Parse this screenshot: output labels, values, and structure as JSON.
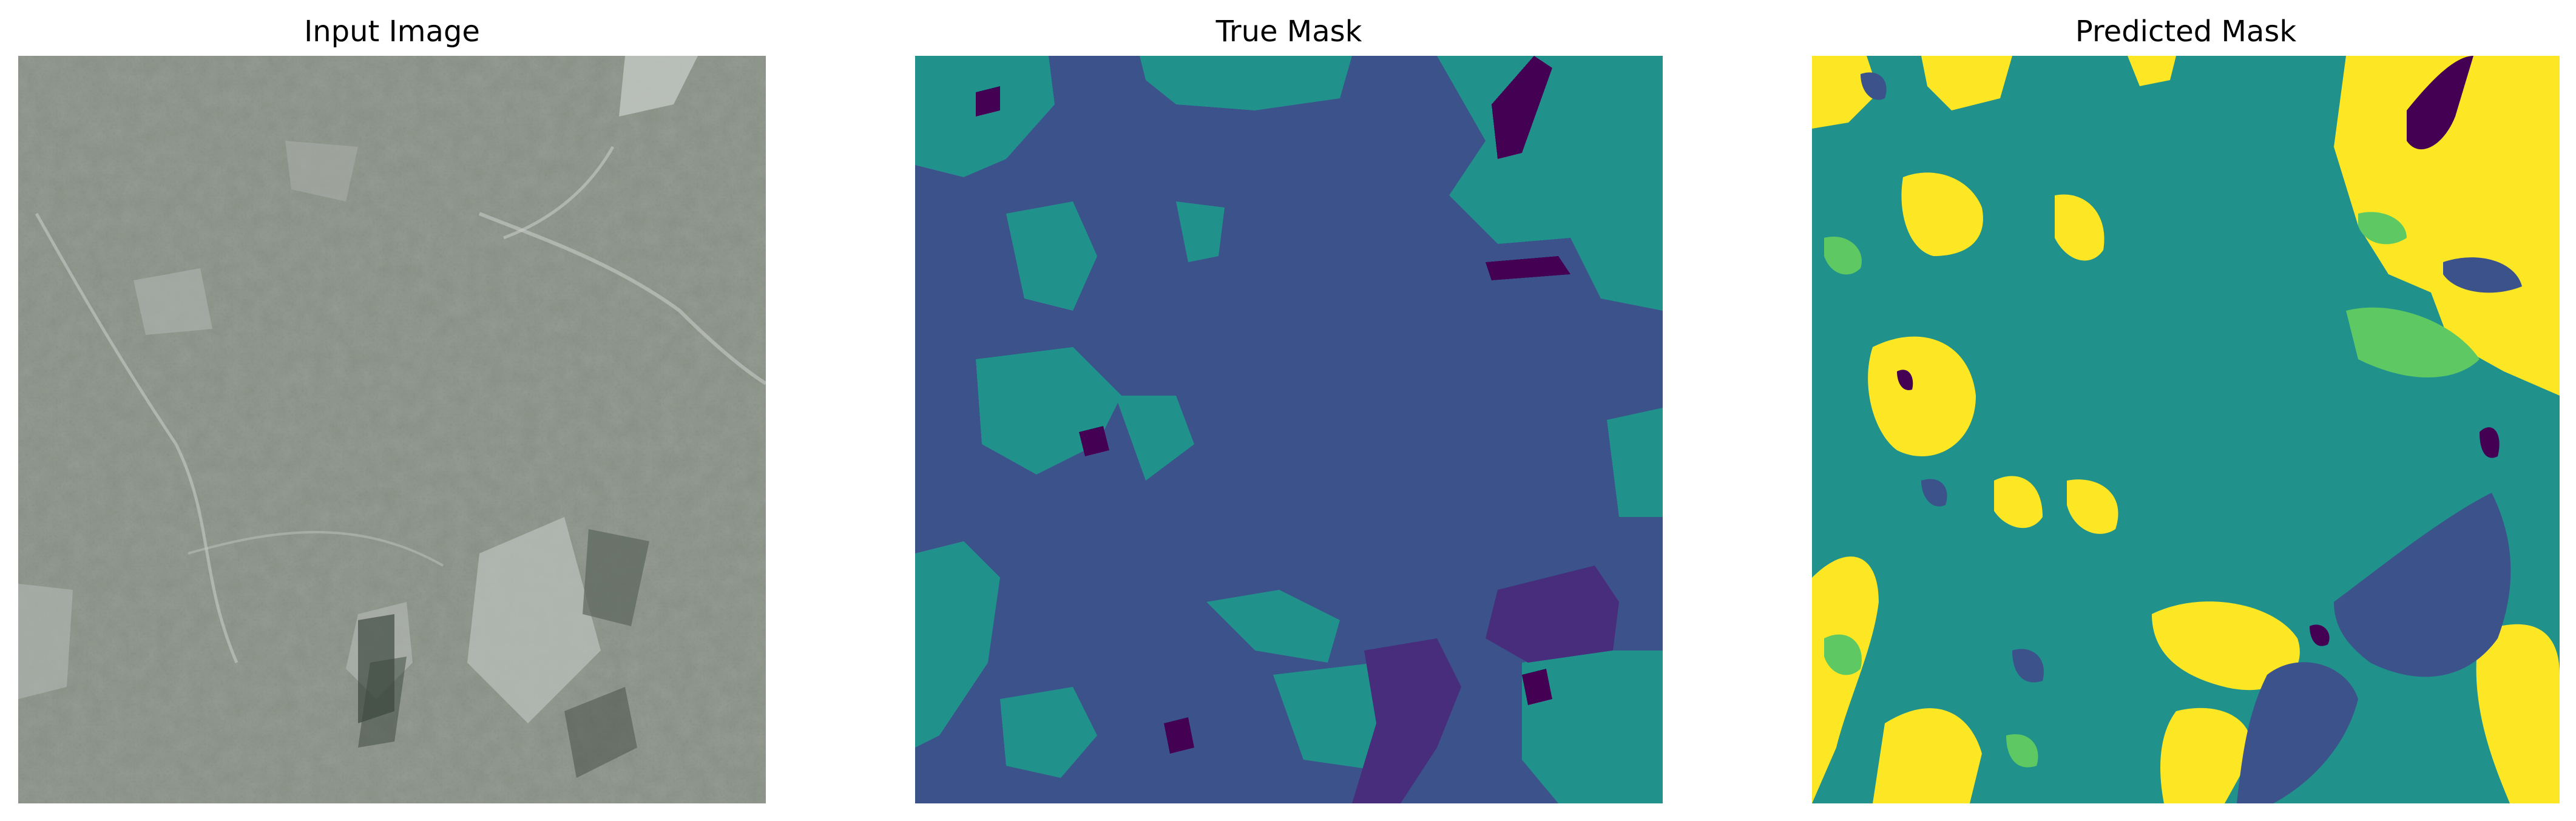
{
  "figure": {
    "panels": [
      {
        "title": "Input Image"
      },
      {
        "title": "True Mask"
      },
      {
        "title": "Predicted Mask"
      }
    ],
    "colors": {
      "viridis_0": "#440154",
      "viridis_1": "#3b528b",
      "viridis_2": "#21918c",
      "viridis_3": "#5ec962",
      "viridis_4": "#fde725",
      "satellite_base": "#8a9186",
      "satellite_dark": "#4f5a4f",
      "satellite_light": "#b7bdb8"
    }
  }
}
